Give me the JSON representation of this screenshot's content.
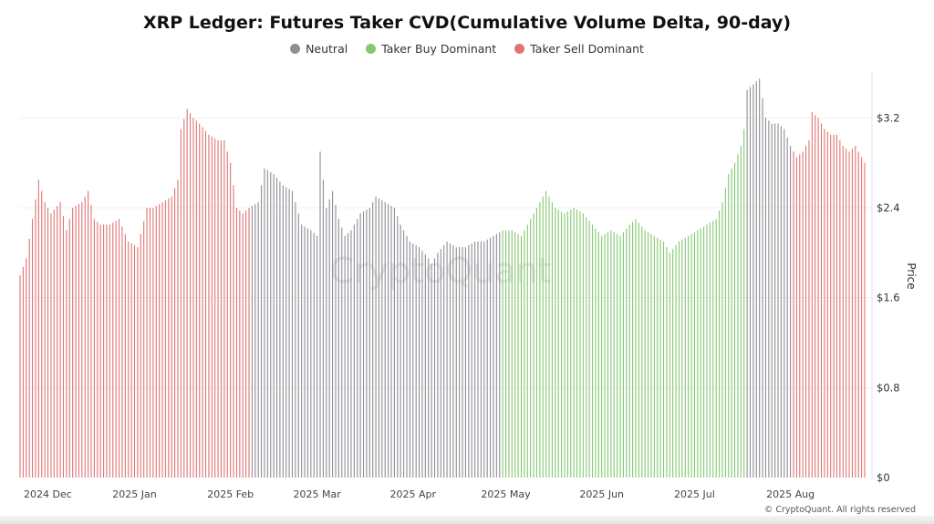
{
  "chart_data": {
    "type": "bar",
    "title": "XRP Ledger: Futures Taker CVD(Cumulative Volume Delta, 90-day)",
    "ylabel": "Price",
    "ylim": [
      0,
      3.6
    ],
    "yticks": [
      "$0",
      "$0.8",
      "$1.6",
      "$2.4",
      "$3.2"
    ],
    "ytick_values": [
      0,
      0.8,
      1.6,
      2.4,
      3.2
    ],
    "xticks": [
      "2024 Dec",
      "2025 Jan",
      "2025 Feb",
      "2025 Mar",
      "2025 Apr",
      "2025 May",
      "2025 Jun",
      "2025 Jul",
      "2025 Aug"
    ],
    "x_start": "2024-11-25",
    "x_end": "2025-08-25",
    "grid": true,
    "legend_position": "top-center",
    "series": [
      {
        "name": "Neutral",
        "color": "#8e8e96"
      },
      {
        "name": "Taker Buy Dominant",
        "color": "#84c870"
      },
      {
        "name": "Taker Sell Dominant",
        "color": "#e07474"
      }
    ],
    "regime_segments": [
      {
        "series": "Taker Sell Dominant",
        "start": "2024-11-25",
        "end": "2025-02-07"
      },
      {
        "series": "Neutral",
        "start": "2025-02-08",
        "end": "2025-04-29"
      },
      {
        "series": "Taker Buy Dominant",
        "start": "2025-04-30",
        "end": "2025-07-17"
      },
      {
        "series": "Neutral",
        "start": "2025-07-18",
        "end": "2025-08-01"
      },
      {
        "series": "Taker Sell Dominant",
        "start": "2025-08-02",
        "end": "2025-08-25"
      }
    ],
    "price_points": [
      [
        "2024-11-25",
        1.8
      ],
      [
        "2024-11-27",
        1.95
      ],
      [
        "2024-11-29",
        2.3
      ],
      [
        "2024-12-01",
        2.65
      ],
      [
        "2024-12-03",
        2.45
      ],
      [
        "2024-12-05",
        2.35
      ],
      [
        "2024-12-08",
        2.45
      ],
      [
        "2024-12-10",
        2.2
      ],
      [
        "2024-12-12",
        2.4
      ],
      [
        "2024-12-15",
        2.45
      ],
      [
        "2024-12-17",
        2.55
      ],
      [
        "2024-12-19",
        2.3
      ],
      [
        "2024-12-21",
        2.25
      ],
      [
        "2024-12-24",
        2.25
      ],
      [
        "2024-12-27",
        2.3
      ],
      [
        "2024-12-30",
        2.1
      ],
      [
        "2025-01-02",
        2.05
      ],
      [
        "2025-01-05",
        2.4
      ],
      [
        "2025-01-07",
        2.4
      ],
      [
        "2025-01-10",
        2.45
      ],
      [
        "2025-01-13",
        2.5
      ],
      [
        "2025-01-15",
        2.65
      ],
      [
        "2025-01-16",
        3.1
      ],
      [
        "2025-01-18",
        3.28
      ],
      [
        "2025-01-20",
        3.2
      ],
      [
        "2025-01-22",
        3.15
      ],
      [
        "2025-01-25",
        3.05
      ],
      [
        "2025-01-28",
        3.0
      ],
      [
        "2025-01-30",
        3.0
      ],
      [
        "2025-02-01",
        2.8
      ],
      [
        "2025-02-03",
        2.4
      ],
      [
        "2025-02-05",
        2.35
      ],
      [
        "2025-02-07",
        2.4
      ],
      [
        "2025-02-10",
        2.45
      ],
      [
        "2025-02-12",
        2.75
      ],
      [
        "2025-02-15",
        2.7
      ],
      [
        "2025-02-18",
        2.6
      ],
      [
        "2025-02-21",
        2.55
      ],
      [
        "2025-02-24",
        2.25
      ],
      [
        "2025-02-27",
        2.2
      ],
      [
        "2025-03-01",
        2.15
      ],
      [
        "2025-03-02",
        2.9
      ],
      [
        "2025-03-04",
        2.4
      ],
      [
        "2025-03-06",
        2.55
      ],
      [
        "2025-03-08",
        2.3
      ],
      [
        "2025-03-10",
        2.15
      ],
      [
        "2025-03-12",
        2.2
      ],
      [
        "2025-03-15",
        2.35
      ],
      [
        "2025-03-18",
        2.4
      ],
      [
        "2025-03-20",
        2.5
      ],
      [
        "2025-03-23",
        2.45
      ],
      [
        "2025-03-26",
        2.4
      ],
      [
        "2025-03-28",
        2.25
      ],
      [
        "2025-03-31",
        2.1
      ],
      [
        "2025-04-03",
        2.05
      ],
      [
        "2025-04-06",
        1.95
      ],
      [
        "2025-04-07",
        1.9
      ],
      [
        "2025-04-09",
        2.0
      ],
      [
        "2025-04-12",
        2.1
      ],
      [
        "2025-04-15",
        2.05
      ],
      [
        "2025-04-18",
        2.05
      ],
      [
        "2025-04-21",
        2.1
      ],
      [
        "2025-04-24",
        2.1
      ],
      [
        "2025-04-27",
        2.15
      ],
      [
        "2025-04-30",
        2.2
      ],
      [
        "2025-05-03",
        2.2
      ],
      [
        "2025-05-06",
        2.15
      ],
      [
        "2025-05-09",
        2.3
      ],
      [
        "2025-05-12",
        2.45
      ],
      [
        "2025-05-14",
        2.55
      ],
      [
        "2025-05-17",
        2.4
      ],
      [
        "2025-05-20",
        2.35
      ],
      [
        "2025-05-23",
        2.4
      ],
      [
        "2025-05-26",
        2.35
      ],
      [
        "2025-05-29",
        2.25
      ],
      [
        "2025-06-01",
        2.15
      ],
      [
        "2025-06-04",
        2.2
      ],
      [
        "2025-06-07",
        2.15
      ],
      [
        "2025-06-10",
        2.25
      ],
      [
        "2025-06-12",
        2.3
      ],
      [
        "2025-06-15",
        2.2
      ],
      [
        "2025-06-18",
        2.15
      ],
      [
        "2025-06-21",
        2.1
      ],
      [
        "2025-06-23",
        2.0
      ],
      [
        "2025-06-26",
        2.1
      ],
      [
        "2025-06-29",
        2.15
      ],
      [
        "2025-07-02",
        2.2
      ],
      [
        "2025-07-05",
        2.25
      ],
      [
        "2025-07-08",
        2.3
      ],
      [
        "2025-07-10",
        2.45
      ],
      [
        "2025-07-12",
        2.7
      ],
      [
        "2025-07-14",
        2.8
      ],
      [
        "2025-07-16",
        2.95
      ],
      [
        "2025-07-17",
        3.1
      ],
      [
        "2025-07-18",
        3.45
      ],
      [
        "2025-07-20",
        3.5
      ],
      [
        "2025-07-22",
        3.55
      ],
      [
        "2025-07-24",
        3.2
      ],
      [
        "2025-07-26",
        3.15
      ],
      [
        "2025-07-28",
        3.15
      ],
      [
        "2025-07-30",
        3.1
      ],
      [
        "2025-08-01",
        2.95
      ],
      [
        "2025-08-03",
        2.85
      ],
      [
        "2025-08-05",
        2.9
      ],
      [
        "2025-08-07",
        3.0
      ],
      [
        "2025-08-08",
        3.25
      ],
      [
        "2025-08-10",
        3.2
      ],
      [
        "2025-08-12",
        3.1
      ],
      [
        "2025-08-14",
        3.05
      ],
      [
        "2025-08-16",
        3.05
      ],
      [
        "2025-08-18",
        2.95
      ],
      [
        "2025-08-20",
        2.9
      ],
      [
        "2025-08-22",
        2.95
      ],
      [
        "2025-08-25",
        2.8
      ]
    ]
  },
  "watermark": "CryptoQuant",
  "copyright": "© CryptoQuant. All rights reserved"
}
